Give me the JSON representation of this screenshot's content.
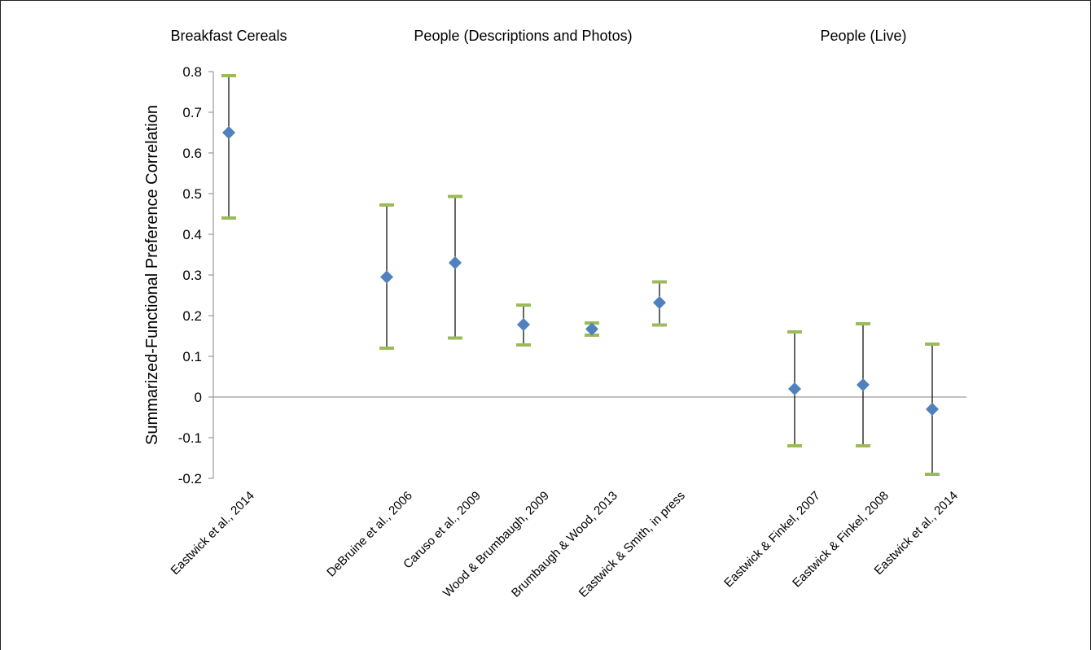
{
  "chart_data": {
    "type": "scatter",
    "ylabel": "Summarized-Functional Preference Correlation",
    "ylim": [
      -0.2,
      0.8
    ],
    "yticks": [
      "0.8",
      "0.7",
      "0.6",
      "0.5",
      "0.4",
      "0.3",
      "0.2",
      "0.1",
      "0",
      "-0.1",
      "-0.2"
    ],
    "groups": [
      {
        "label": "Breakfast Cereals",
        "first": 0,
        "last": 0
      },
      {
        "label": "People (Descriptions and Photos)",
        "first": 1,
        "last": 5
      },
      {
        "label": "People (Live)",
        "first": 6,
        "last": 8
      }
    ],
    "categories": [
      "Eastwick et al., 2014",
      "DeBruine et al., 2006",
      "Caruso et al., 2009",
      "Wood & Brumbaugh, 2009",
      "Brumbaugh & Wood, 2013",
      "Eastwick & Smith, in press",
      "Eastwick & Finkel, 2007",
      "Eastwick & Finkel, 2008",
      "Eastwick et al., 2014"
    ],
    "values": [
      0.65,
      0.295,
      0.33,
      0.178,
      0.167,
      0.232,
      0.02,
      0.03,
      -0.03
    ],
    "lower": [
      0.44,
      0.12,
      0.145,
      0.128,
      0.152,
      0.177,
      -0.12,
      -0.12,
      -0.19
    ],
    "upper": [
      0.79,
      0.472,
      0.493,
      0.226,
      0.182,
      0.283,
      0.16,
      0.18,
      0.13
    ],
    "colors": {
      "marker": "#4f81bd",
      "cap": "#9bbb59",
      "bar": "#000000",
      "axis": "#868686"
    },
    "grid": false,
    "legend": "none"
  }
}
